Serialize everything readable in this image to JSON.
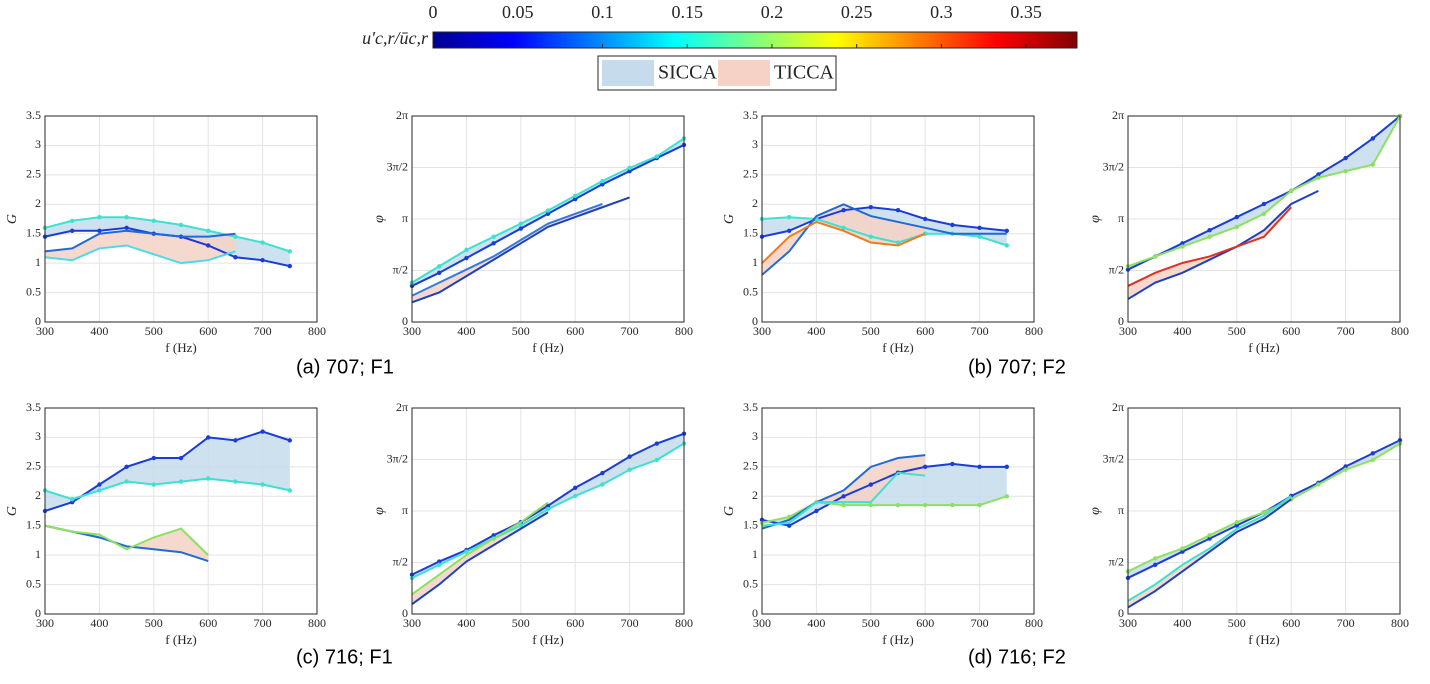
{
  "colorbar": {
    "label": "u′c,r/ūc,r",
    "lim": [
      0,
      0.38
    ],
    "ticks": [
      0,
      0.05,
      0.1,
      0.15,
      0.2,
      0.25,
      0.3,
      0.35
    ]
  },
  "legend": [
    {
      "name": "SICCA",
      "color": "#c6dcec"
    },
    {
      "name": "TICCA",
      "color": "#f5d2c5"
    }
  ],
  "captions": [
    "(a) 707; F1",
    "(b) 707; F2",
    "(c) 716; F1",
    "(d) 716; F2"
  ],
  "chart_data": [
    {
      "type": "line",
      "xlabel": "f (Hz)",
      "ylabel": "G",
      "x": [
        300,
        350,
        400,
        450,
        500,
        550,
        600,
        650,
        700,
        750,
        800
      ],
      "xlim": [
        300,
        800
      ],
      "xticks": [
        300,
        400,
        500,
        600,
        700,
        800
      ],
      "ylim": [
        0,
        3.5
      ],
      "yticks": [
        0,
        0.5,
        1,
        1.5,
        2,
        2.5,
        3,
        3.5
      ],
      "grid": true,
      "series": [
        {
          "color": "#1a3cd9",
          "markers": true,
          "values": [
            1.45,
            1.55,
            1.55,
            1.6,
            1.5,
            1.45,
            1.3,
            1.1,
            1.05,
            0.95,
            null
          ]
        },
        {
          "color": "#3ee0d0",
          "markers": true,
          "values": [
            1.6,
            1.72,
            1.78,
            1.78,
            1.72,
            1.65,
            1.55,
            1.45,
            1.35,
            1.2,
            null
          ]
        },
        {
          "color": "#1f6ad4",
          "markers": false,
          "values": [
            1.2,
            1.25,
            1.5,
            1.55,
            1.5,
            1.45,
            1.45,
            1.5,
            null,
            null,
            null
          ]
        },
        {
          "color": "#4fd8e8",
          "markers": false,
          "values": [
            1.1,
            1.05,
            1.25,
            1.3,
            1.15,
            1.0,
            1.05,
            1.2,
            null,
            null,
            null
          ]
        }
      ],
      "bands": [
        {
          "series": [
            0,
            1
          ],
          "legend": 0
        },
        {
          "series": [
            2,
            3
          ],
          "legend": 1
        }
      ]
    },
    {
      "type": "line",
      "xlabel": "f (Hz)",
      "ylabel": "φ",
      "x": [
        300,
        350,
        400,
        450,
        500,
        550,
        600,
        650,
        700,
        750,
        800
      ],
      "xlim": [
        300,
        800
      ],
      "xticks": [
        300,
        400,
        500,
        600,
        700,
        800
      ],
      "ylim": [
        0,
        6.2832
      ],
      "yticks": [
        0,
        {
          "value": 1.5708,
          "label": "π/2"
        },
        {
          "value": 3.1416,
          "label": "π"
        },
        {
          "value": 4.7124,
          "label": "3π/2"
        },
        {
          "value": 6.2832,
          "label": "2π"
        }
      ],
      "grid": true,
      "series": [
        {
          "color": "#1a3cd9",
          "markers": true,
          "values": [
            1.1,
            1.5,
            1.95,
            2.4,
            2.85,
            3.3,
            3.75,
            4.2,
            4.6,
            5.0,
            5.4
          ]
        },
        {
          "color": "#3ee0d0",
          "markers": true,
          "values": [
            1.2,
            1.7,
            2.2,
            2.6,
            3.0,
            3.4,
            3.85,
            4.3,
            4.7,
            5.05,
            5.6
          ]
        },
        {
          "color": "#1f3fc0",
          "markers": false,
          "values": [
            0.6,
            0.9,
            1.4,
            1.9,
            2.4,
            2.9,
            3.2,
            3.5,
            3.8,
            null,
            null
          ]
        },
        {
          "color": "#2f7be0",
          "markers": false,
          "values": [
            0.8,
            1.2,
            1.6,
            2.0,
            2.5,
            3.0,
            3.3,
            3.6,
            null,
            null,
            null
          ]
        }
      ],
      "bands": [
        {
          "series": [
            0,
            1
          ],
          "legend": 0
        },
        {
          "series": [
            2,
            3
          ],
          "legend": 1
        }
      ]
    },
    {
      "type": "line",
      "xlabel": "f (Hz)",
      "ylabel": "G",
      "x": [
        300,
        350,
        400,
        450,
        500,
        550,
        600,
        650,
        700,
        750,
        800
      ],
      "xlim": [
        300,
        800
      ],
      "xticks": [
        300,
        400,
        500,
        600,
        700,
        800
      ],
      "ylim": [
        0,
        3.5
      ],
      "yticks": [
        0,
        0.5,
        1,
        1.5,
        2,
        2.5,
        3,
        3.5
      ],
      "grid": true,
      "series": [
        {
          "color": "#1a3cd9",
          "markers": true,
          "values": [
            1.45,
            1.55,
            1.75,
            1.9,
            1.95,
            1.9,
            1.75,
            1.65,
            1.6,
            1.55,
            null
          ]
        },
        {
          "color": "#3ee0d0",
          "markers": true,
          "values": [
            1.75,
            1.78,
            1.75,
            1.6,
            1.45,
            1.35,
            1.5,
            1.5,
            1.45,
            1.3,
            null
          ]
        },
        {
          "color": "#1f6ad4",
          "markers": false,
          "values": [
            0.8,
            1.2,
            1.8,
            2.0,
            1.8,
            1.7,
            1.6,
            1.5,
            1.5,
            1.5,
            null
          ]
        },
        {
          "color": "#f07a20",
          "markers": false,
          "values": [
            1.0,
            1.45,
            1.7,
            1.55,
            1.35,
            1.3,
            1.5,
            null,
            null,
            null,
            null
          ]
        }
      ],
      "bands": [
        {
          "series": [
            0,
            1
          ],
          "legend": 0
        },
        {
          "series": [
            2,
            3
          ],
          "legend": 1
        }
      ]
    },
    {
      "type": "line",
      "xlabel": "f (Hz)",
      "ylabel": "φ",
      "x": [
        300,
        350,
        400,
        450,
        500,
        550,
        600,
        650,
        700,
        750,
        800
      ],
      "xlim": [
        300,
        800
      ],
      "xticks": [
        300,
        400,
        500,
        600,
        700,
        800
      ],
      "ylim": [
        0,
        6.2832
      ],
      "yticks": [
        0,
        {
          "value": 1.5708,
          "label": "π/2"
        },
        {
          "value": 3.1416,
          "label": "π"
        },
        {
          "value": 4.7124,
          "label": "3π/2"
        },
        {
          "value": 6.2832,
          "label": "2π"
        }
      ],
      "grid": true,
      "series": [
        {
          "color": "#1a3cd9",
          "markers": true,
          "values": [
            1.6,
            2.0,
            2.4,
            2.8,
            3.2,
            3.6,
            4.0,
            4.5,
            5.0,
            5.6,
            6.28
          ]
        },
        {
          "color": "#8ee060",
          "markers": true,
          "values": [
            1.7,
            2.0,
            2.3,
            2.6,
            2.9,
            3.3,
            4.0,
            4.4,
            4.6,
            4.8,
            6.28
          ]
        },
        {
          "color": "#1f3fc0",
          "markers": false,
          "values": [
            0.7,
            1.2,
            1.5,
            1.9,
            2.3,
            2.8,
            3.6,
            4.0,
            null,
            null,
            null
          ]
        },
        {
          "color": "#e03020",
          "markers": false,
          "values": [
            1.1,
            1.5,
            1.8,
            2.0,
            2.3,
            2.6,
            3.5,
            null,
            null,
            null,
            null
          ]
        }
      ],
      "bands": [
        {
          "series": [
            0,
            1
          ],
          "legend": 0
        },
        {
          "series": [
            2,
            3
          ],
          "legend": 1
        }
      ]
    },
    {
      "type": "line",
      "xlabel": "f (Hz)",
      "ylabel": "G",
      "x": [
        300,
        350,
        400,
        450,
        500,
        550,
        600,
        650,
        700,
        750,
        800
      ],
      "xlim": [
        300,
        800
      ],
      "xticks": [
        300,
        400,
        500,
        600,
        700,
        800
      ],
      "ylim": [
        0,
        3.5
      ],
      "yticks": [
        0,
        0.5,
        1,
        1.5,
        2,
        2.5,
        3,
        3.5
      ],
      "grid": true,
      "series": [
        {
          "color": "#1a3cd9",
          "markers": true,
          "values": [
            1.75,
            1.9,
            2.2,
            2.5,
            2.65,
            2.65,
            3.0,
            2.95,
            3.1,
            2.95,
            null
          ]
        },
        {
          "color": "#3ee0d0",
          "markers": true,
          "values": [
            2.1,
            1.95,
            2.1,
            2.25,
            2.2,
            2.25,
            2.3,
            2.25,
            2.2,
            2.1,
            null
          ]
        },
        {
          "color": "#1f6ad4",
          "markers": false,
          "values": [
            1.5,
            1.4,
            1.3,
            1.15,
            1.1,
            1.05,
            0.9,
            null,
            null,
            null,
            null
          ]
        },
        {
          "color": "#8ee060",
          "markers": false,
          "values": [
            1.5,
            1.4,
            1.35,
            1.1,
            1.3,
            1.45,
            1.0,
            null,
            null,
            null,
            null
          ]
        }
      ],
      "bands": [
        {
          "series": [
            0,
            1
          ],
          "legend": 0
        },
        {
          "series": [
            2,
            3
          ],
          "legend": 1
        }
      ]
    },
    {
      "type": "line",
      "xlabel": "f (Hz)",
      "ylabel": "φ",
      "x": [
        300,
        350,
        400,
        450,
        500,
        550,
        600,
        650,
        700,
        750,
        800
      ],
      "xlim": [
        300,
        800
      ],
      "xticks": [
        300,
        400,
        500,
        600,
        700,
        800
      ],
      "ylim": [
        0,
        6.2832
      ],
      "yticks": [
        0,
        {
          "value": 1.5708,
          "label": "π/2"
        },
        {
          "value": 3.1416,
          "label": "π"
        },
        {
          "value": 4.7124,
          "label": "3π/2"
        },
        {
          "value": 6.2832,
          "label": "2π"
        }
      ],
      "grid": true,
      "series": [
        {
          "color": "#1a3cd9",
          "markers": true,
          "values": [
            1.2,
            1.6,
            1.95,
            2.4,
            2.8,
            3.3,
            3.85,
            4.3,
            4.8,
            5.2,
            5.5
          ]
        },
        {
          "color": "#3ee0d0",
          "markers": true,
          "values": [
            1.1,
            1.5,
            1.9,
            2.3,
            2.7,
            3.2,
            3.6,
            3.95,
            4.4,
            4.7,
            5.2
          ]
        },
        {
          "color": "#8ee060",
          "markers": false,
          "values": [
            0.6,
            1.2,
            1.8,
            2.3,
            2.8,
            3.4,
            null,
            null,
            null,
            null,
            null
          ]
        },
        {
          "color": "#1f3fc0",
          "markers": false,
          "values": [
            0.3,
            0.9,
            1.6,
            2.1,
            2.6,
            3.1,
            null,
            null,
            null,
            null,
            null
          ]
        }
      ],
      "bands": [
        {
          "series": [
            0,
            1
          ],
          "legend": 0
        },
        {
          "series": [
            2,
            3
          ],
          "legend": 1
        }
      ]
    },
    {
      "type": "line",
      "xlabel": "f (Hz)",
      "ylabel": "G",
      "x": [
        300,
        350,
        400,
        450,
        500,
        550,
        600,
        650,
        700,
        750,
        800
      ],
      "xlim": [
        300,
        800
      ],
      "xticks": [
        300,
        400,
        500,
        600,
        700,
        800
      ],
      "ylim": [
        0,
        3.5
      ],
      "yticks": [
        0,
        0.5,
        1,
        1.5,
        2,
        2.5,
        3,
        3.5
      ],
      "grid": true,
      "series": [
        {
          "color": "#1a3cd9",
          "markers": true,
          "values": [
            1.6,
            1.5,
            1.75,
            2.0,
            2.2,
            2.4,
            2.5,
            2.55,
            2.5,
            2.5,
            null
          ]
        },
        {
          "color": "#8ee060",
          "markers": true,
          "values": [
            1.55,
            1.65,
            1.9,
            1.85,
            1.85,
            1.85,
            1.85,
            1.85,
            1.85,
            2.0,
            null
          ]
        },
        {
          "color": "#1f6ad4",
          "markers": false,
          "values": [
            1.45,
            1.6,
            1.9,
            2.1,
            2.5,
            2.65,
            2.7,
            null,
            null,
            null,
            null
          ]
        },
        {
          "color": "#3ee0d0",
          "markers": false,
          "values": [
            1.5,
            1.55,
            1.9,
            1.9,
            1.9,
            2.4,
            2.35,
            null,
            null,
            null,
            null
          ]
        }
      ],
      "bands": [
        {
          "series": [
            0,
            1
          ],
          "legend": 0
        },
        {
          "series": [
            2,
            3
          ],
          "legend": 1
        }
      ]
    },
    {
      "type": "line",
      "xlabel": "f (Hz)",
      "ylabel": "φ",
      "x": [
        300,
        350,
        400,
        450,
        500,
        550,
        600,
        650,
        700,
        750,
        800
      ],
      "xlim": [
        300,
        800
      ],
      "xticks": [
        300,
        400,
        500,
        600,
        700,
        800
      ],
      "ylim": [
        0,
        6.2832
      ],
      "yticks": [
        0,
        {
          "value": 1.5708,
          "label": "π/2"
        },
        {
          "value": 3.1416,
          "label": "π"
        },
        {
          "value": 4.7124,
          "label": "3π/2"
        },
        {
          "value": 6.2832,
          "label": "2π"
        }
      ],
      "grid": true,
      "series": [
        {
          "color": "#1a3cd9",
          "markers": true,
          "values": [
            1.1,
            1.5,
            1.9,
            2.3,
            2.7,
            3.1,
            3.6,
            4.0,
            4.5,
            4.9,
            5.3
          ]
        },
        {
          "color": "#8ee060",
          "markers": true,
          "values": [
            1.3,
            1.7,
            2.0,
            2.4,
            2.8,
            3.1,
            3.5,
            3.95,
            4.4,
            4.7,
            5.2
          ]
        },
        {
          "color": "#3ee0d0",
          "markers": false,
          "values": [
            0.4,
            0.9,
            1.5,
            2.0,
            2.6,
            3.0,
            3.6,
            null,
            null,
            null,
            null
          ]
        },
        {
          "color": "#1f3fc0",
          "markers": false,
          "values": [
            0.2,
            0.7,
            1.3,
            1.9,
            2.5,
            2.9,
            3.5,
            null,
            null,
            null,
            null
          ]
        }
      ],
      "bands": [
        {
          "series": [
            0,
            1
          ],
          "legend": 0
        },
        {
          "series": [
            2,
            3
          ],
          "legend": 1
        }
      ]
    }
  ]
}
